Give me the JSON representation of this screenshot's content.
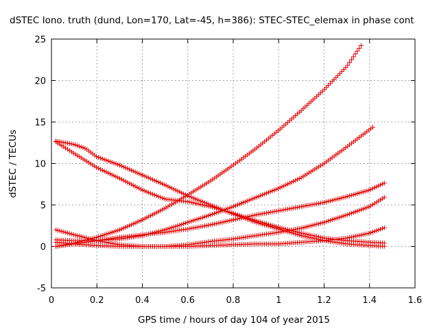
{
  "chart_data": {
    "type": "scatter",
    "title": "dSTEC Iono. truth (dund, Lon=170, Lat=-45, h=386): STEC-STEC_elemax in phase cont",
    "xlabel": "GPS time / hours of day 104 of year 2015",
    "ylabel": "dSTEC  / TECUs",
    "xlim": [
      0,
      1.6
    ],
    "ylim": [
      -5,
      25
    ],
    "x_ticks": [
      "0",
      "0.2",
      "0.4",
      "0.6",
      "0.8",
      "1",
      "1.2",
      "1.4",
      "1.6"
    ],
    "y_ticks": [
      "-5",
      "0",
      "5",
      "10",
      "15",
      "20",
      "25"
    ],
    "grid": true,
    "legend": "none",
    "marker": "+",
    "marker_color": "#e00000",
    "series": [
      {
        "points": [
          [
            0.02,
            0.0
          ],
          [
            0.1,
            0.4
          ],
          [
            0.2,
            1.1
          ],
          [
            0.3,
            2.0
          ],
          [
            0.4,
            3.2
          ],
          [
            0.5,
            4.6
          ],
          [
            0.6,
            6.2
          ],
          [
            0.7,
            7.9
          ],
          [
            0.8,
            9.8
          ],
          [
            0.9,
            11.8
          ],
          [
            1.0,
            14.0
          ],
          [
            1.1,
            16.4
          ],
          [
            1.2,
            18.9
          ],
          [
            1.3,
            21.7
          ],
          [
            1.37,
            24.5
          ]
        ]
      },
      {
        "points": [
          [
            0.02,
            0.8
          ],
          [
            0.1,
            0.7
          ],
          [
            0.2,
            0.7
          ],
          [
            0.3,
            0.9
          ],
          [
            0.4,
            1.3
          ],
          [
            0.5,
            2.0
          ],
          [
            0.6,
            2.9
          ],
          [
            0.7,
            3.8
          ],
          [
            0.8,
            4.8
          ],
          [
            0.9,
            5.9
          ],
          [
            1.0,
            7.0
          ],
          [
            1.1,
            8.3
          ],
          [
            1.2,
            10.0
          ],
          [
            1.3,
            12.0
          ],
          [
            1.42,
            14.5
          ]
        ]
      },
      {
        "points": [
          [
            0.02,
            12.7
          ],
          [
            0.1,
            12.3
          ],
          [
            0.15,
            11.8
          ],
          [
            0.2,
            10.8
          ],
          [
            0.3,
            9.8
          ],
          [
            0.4,
            8.6
          ],
          [
            0.5,
            7.4
          ],
          [
            0.6,
            6.1
          ],
          [
            0.7,
            5.0
          ],
          [
            0.8,
            3.9
          ],
          [
            0.9,
            2.9
          ],
          [
            1.0,
            2.1
          ],
          [
            1.1,
            1.3
          ],
          [
            1.2,
            0.7
          ],
          [
            1.3,
            0.3
          ],
          [
            1.4,
            0.1
          ],
          [
            1.47,
            0.0
          ]
        ]
      },
      {
        "points": [
          [
            0.02,
            12.6
          ],
          [
            0.1,
            11.2
          ],
          [
            0.2,
            9.5
          ],
          [
            0.3,
            8.2
          ],
          [
            0.4,
            6.8
          ],
          [
            0.5,
            5.7
          ],
          [
            0.6,
            5.4
          ],
          [
            0.7,
            4.8
          ],
          [
            0.8,
            4.0
          ],
          [
            0.9,
            3.1
          ],
          [
            1.0,
            2.3
          ],
          [
            1.1,
            1.6
          ],
          [
            1.2,
            1.0
          ],
          [
            1.3,
            0.7
          ],
          [
            1.4,
            0.5
          ],
          [
            1.47,
            0.4
          ]
        ]
      },
      {
        "points": [
          [
            0.02,
            2.0
          ],
          [
            0.1,
            1.4
          ],
          [
            0.2,
            0.7
          ],
          [
            0.3,
            0.2
          ],
          [
            0.4,
            0.0
          ],
          [
            0.5,
            0.0
          ],
          [
            0.6,
            0.2
          ],
          [
            0.7,
            0.6
          ],
          [
            0.8,
            0.9
          ],
          [
            0.9,
            1.3
          ],
          [
            1.0,
            1.7
          ],
          [
            1.1,
            2.2
          ],
          [
            1.2,
            2.9
          ],
          [
            1.3,
            3.8
          ],
          [
            1.4,
            4.8
          ],
          [
            1.47,
            6.0
          ]
        ]
      },
      {
        "points": [
          [
            0.02,
            0.0
          ],
          [
            0.1,
            0.3
          ],
          [
            0.2,
            0.7
          ],
          [
            0.3,
            1.1
          ],
          [
            0.4,
            1.4
          ],
          [
            0.5,
            1.7
          ],
          [
            0.6,
            2.1
          ],
          [
            0.7,
            2.6
          ],
          [
            0.8,
            3.2
          ],
          [
            0.9,
            3.8
          ],
          [
            1.0,
            4.3
          ],
          [
            1.1,
            4.8
          ],
          [
            1.2,
            5.3
          ],
          [
            1.3,
            6.0
          ],
          [
            1.4,
            6.8
          ],
          [
            1.47,
            7.7
          ]
        ]
      },
      {
        "points": [
          [
            0.02,
            0.5
          ],
          [
            0.1,
            0.3
          ],
          [
            0.2,
            0.1
          ],
          [
            0.3,
            0.0
          ],
          [
            0.4,
            0.0
          ],
          [
            0.5,
            0.0
          ],
          [
            0.6,
            0.0
          ],
          [
            0.7,
            0.1
          ],
          [
            0.8,
            0.2
          ],
          [
            0.9,
            0.3
          ],
          [
            1.0,
            0.3
          ],
          [
            1.1,
            0.5
          ],
          [
            1.2,
            0.7
          ],
          [
            1.3,
            1.0
          ],
          [
            1.4,
            1.6
          ],
          [
            1.47,
            2.3
          ]
        ]
      }
    ]
  }
}
